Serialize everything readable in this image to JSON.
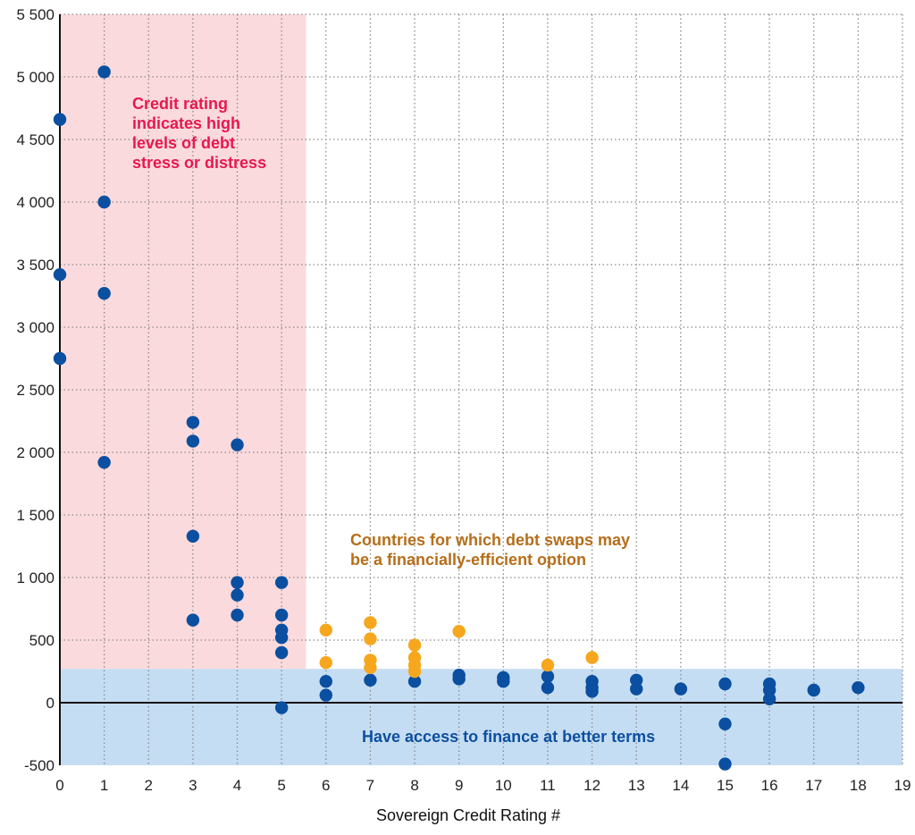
{
  "chart_data": {
    "type": "scatter",
    "title": "",
    "xlabel": "Sovereign Credit Rating #",
    "ylabel": "",
    "xlim": [
      0,
      19
    ],
    "ylim": [
      -500,
      5500
    ],
    "x_ticks": [
      0,
      1,
      2,
      3,
      4,
      5,
      6,
      7,
      8,
      9,
      10,
      11,
      12,
      13,
      14,
      15,
      16,
      17,
      18,
      19
    ],
    "y_ticks": [
      -500,
      0,
      500,
      1000,
      1500,
      2000,
      2500,
      3000,
      3500,
      4000,
      4500,
      5000,
      5500
    ],
    "y_tick_labels": [
      "-500",
      "0",
      "500",
      "1 000",
      "1 500",
      "2 000",
      "2 500",
      "3 000",
      "3 500",
      "4 000",
      "4 500",
      "5 000",
      "5 500"
    ],
    "grid": true,
    "regions": {
      "distress": {
        "label_lines": [
          "Credit rating",
          "indicates high",
          "levels of debt",
          "stress or distress"
        ],
        "color": "#fbdadd",
        "text_color": "#e8174f",
        "x_range": [
          0,
          5.55
        ],
        "y_range": [
          270,
          5500
        ]
      },
      "access": {
        "label": "Have access to finance at better terms",
        "color": "#c5ddf3",
        "text_color": "#0d4fa0",
        "x_range": [
          0,
          19
        ],
        "y_range": [
          -500,
          270
        ]
      },
      "swaps": {
        "label_lines": [
          "Countries for which debt swaps may",
          "be a financially-efficient option"
        ],
        "text_color": "#b56e1a"
      }
    },
    "series": [
      {
        "color": "#0a4fa0",
        "points": [
          [
            0,
            4660
          ],
          [
            0,
            3420
          ],
          [
            0,
            2750
          ],
          [
            1,
            5040
          ],
          [
            1,
            4000
          ],
          [
            1,
            3270
          ],
          [
            1,
            1920
          ],
          [
            3,
            2240
          ],
          [
            3,
            2090
          ],
          [
            3,
            1330
          ],
          [
            3,
            660
          ],
          [
            4,
            2060
          ],
          [
            4,
            960
          ],
          [
            4,
            860
          ],
          [
            4,
            700
          ],
          [
            5,
            960
          ],
          [
            5,
            700
          ],
          [
            5,
            580
          ],
          [
            5,
            520
          ],
          [
            5,
            400
          ],
          [
            5,
            -40
          ],
          [
            6,
            170
          ],
          [
            6,
            60
          ],
          [
            7,
            180
          ],
          [
            8,
            170
          ],
          [
            9,
            220
          ],
          [
            9,
            190
          ],
          [
            10,
            200
          ],
          [
            10,
            170
          ],
          [
            11,
            210
          ],
          [
            11,
            120
          ],
          [
            12,
            170
          ],
          [
            12,
            120
          ],
          [
            12,
            90
          ],
          [
            13,
            180
          ],
          [
            13,
            110
          ],
          [
            14,
            110
          ],
          [
            15,
            150
          ],
          [
            15,
            -170
          ],
          [
            15,
            -490
          ],
          [
            16,
            150
          ],
          [
            16,
            100
          ],
          [
            16,
            30
          ],
          [
            17,
            100
          ],
          [
            18,
            120
          ]
        ]
      },
      {
        "color": "#f6a71e",
        "points": [
          [
            6,
            580
          ],
          [
            6,
            320
          ],
          [
            7,
            640
          ],
          [
            7,
            510
          ],
          [
            7,
            340
          ],
          [
            7,
            280
          ],
          [
            8,
            460
          ],
          [
            8,
            360
          ],
          [
            8,
            300
          ],
          [
            8,
            250
          ],
          [
            9,
            570
          ],
          [
            11,
            300
          ],
          [
            12,
            360
          ]
        ]
      }
    ]
  }
}
